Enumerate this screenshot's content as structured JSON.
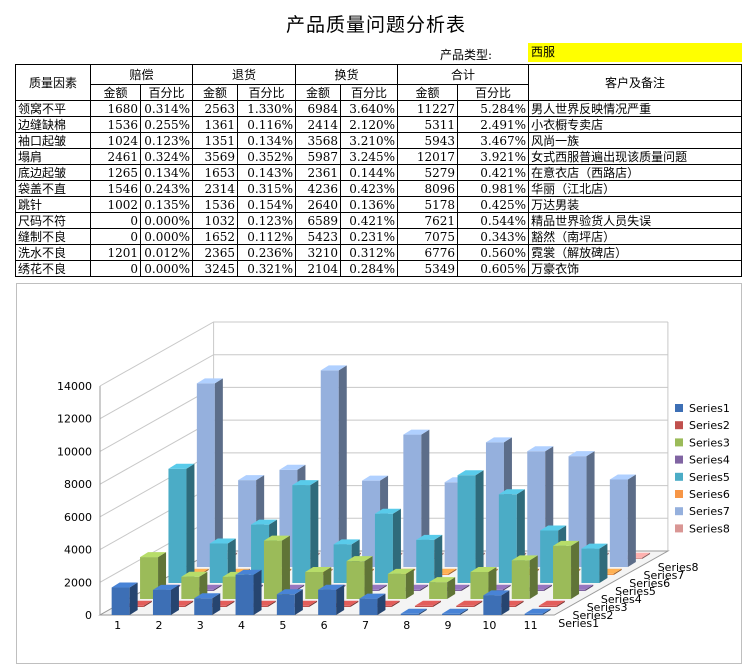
{
  "title": "产品质量问题分析表",
  "product_type_label": "产品类型:",
  "product_type_value": "西服",
  "table": {
    "header": {
      "factor": "质量因素",
      "groups": [
        "赔偿",
        "退货",
        "换货",
        "合计"
      ],
      "amount": "金额",
      "percent": "百分比",
      "notes": "客户及备注"
    },
    "rows": [
      {
        "factor": "领窝不平",
        "c_amt": "1680",
        "c_pct": "0.314%",
        "r_amt": "2563",
        "r_pct": "1.330%",
        "e_amt": "6984",
        "e_pct": "3.640%",
        "t_amt": "11227",
        "t_pct": "5.284%",
        "note": "男人世界反映情况严重"
      },
      {
        "factor": "边缝缺棉",
        "c_amt": "1536",
        "c_pct": "0.255%",
        "r_amt": "1361",
        "r_pct": "0.116%",
        "e_amt": "2414",
        "e_pct": "2.120%",
        "t_amt": "5311",
        "t_pct": "2.491%",
        "note": "小衣橱专卖店"
      },
      {
        "factor": "袖口起皱",
        "c_amt": "1024",
        "c_pct": "0.123%",
        "r_amt": "1351",
        "r_pct": "0.134%",
        "e_amt": "3568",
        "e_pct": "3.210%",
        "t_amt": "5943",
        "t_pct": "3.467%",
        "note": "风尚一族"
      },
      {
        "factor": "塌肩",
        "c_amt": "2461",
        "c_pct": "0.324%",
        "r_amt": "3569",
        "r_pct": "0.352%",
        "e_amt": "5987",
        "e_pct": "3.245%",
        "t_amt": "12017",
        "t_pct": "3.921%",
        "note": "女式西服普遍出现该质量问题"
      },
      {
        "factor": "底边起皱",
        "c_amt": "1265",
        "c_pct": "0.134%",
        "r_amt": "1653",
        "r_pct": "0.143%",
        "e_amt": "2361",
        "e_pct": "0.144%",
        "t_amt": "5279",
        "t_pct": "0.421%",
        "note": "在意衣店（西路店）"
      },
      {
        "factor": "袋盖不直",
        "c_amt": "1546",
        "c_pct": "0.243%",
        "r_amt": "2314",
        "r_pct": "0.315%",
        "e_amt": "4236",
        "e_pct": "0.423%",
        "t_amt": "8096",
        "t_pct": "0.981%",
        "note": "华丽（江北店）"
      },
      {
        "factor": "跳针",
        "c_amt": "1002",
        "c_pct": "0.135%",
        "r_amt": "1536",
        "r_pct": "0.154%",
        "e_amt": "2640",
        "e_pct": "0.136%",
        "t_amt": "5178",
        "t_pct": "0.425%",
        "note": "万达男装"
      },
      {
        "factor": "尺码不符",
        "c_amt": "0",
        "c_pct": "0.000%",
        "r_amt": "1032",
        "r_pct": "0.123%",
        "e_amt": "6589",
        "e_pct": "0.421%",
        "t_amt": "7621",
        "t_pct": "0.544%",
        "note": "精品世界验货人员失误"
      },
      {
        "factor": "缝制不良",
        "c_amt": "0",
        "c_pct": "0.000%",
        "r_amt": "1652",
        "r_pct": "0.112%",
        "e_amt": "5423",
        "e_pct": "0.231%",
        "t_amt": "7075",
        "t_pct": "0.343%",
        "note": "豁然（南坪店）"
      },
      {
        "factor": "洗水不良",
        "c_amt": "1201",
        "c_pct": "0.012%",
        "r_amt": "2365",
        "r_pct": "0.236%",
        "e_amt": "3210",
        "e_pct": "0.312%",
        "t_amt": "6776",
        "t_pct": "0.560%",
        "note": "霓裳（解放碑店）"
      },
      {
        "factor": "绣花不良",
        "c_amt": "0",
        "c_pct": "0.000%",
        "r_amt": "3245",
        "r_pct": "0.321%",
        "e_amt": "2104",
        "e_pct": "0.284%",
        "t_amt": "5349",
        "t_pct": "0.605%",
        "note": "万豪衣饰"
      }
    ]
  },
  "chart_data": {
    "type": "bar",
    "style": "3d-column",
    "categories": [
      "1",
      "2",
      "3",
      "4",
      "5",
      "6",
      "7",
      "8",
      "9",
      "10",
      "11"
    ],
    "series": [
      {
        "name": "Series1",
        "color": "#3d6fb5",
        "values": [
          1680,
          1536,
          1024,
          2461,
          1265,
          1546,
          1002,
          0,
          0,
          1201,
          0
        ]
      },
      {
        "name": "Series2",
        "color": "#c0504d",
        "values": [
          0.314,
          0.255,
          0.123,
          0.324,
          0.134,
          0.243,
          0.135,
          0,
          0,
          0.012,
          0
        ]
      },
      {
        "name": "Series3",
        "color": "#9bbb59",
        "values": [
          2563,
          1361,
          1351,
          3569,
          1653,
          2314,
          1536,
          1032,
          1652,
          2365,
          3245
        ]
      },
      {
        "name": "Series4",
        "color": "#8064a2",
        "values": [
          1.33,
          0.116,
          0.134,
          0.352,
          0.143,
          0.315,
          0.154,
          0.123,
          0.112,
          0.236,
          0.321
        ]
      },
      {
        "name": "Series5",
        "color": "#4bacc6",
        "values": [
          6984,
          2414,
          3568,
          5987,
          2361,
          4236,
          2640,
          6589,
          5423,
          3210,
          2104
        ]
      },
      {
        "name": "Series6",
        "color": "#f79646",
        "values": [
          3.64,
          2.12,
          3.21,
          3.245,
          0.144,
          0.423,
          0.136,
          0.421,
          0.231,
          0.312,
          0.284
        ]
      },
      {
        "name": "Series7",
        "color": "#95b0dd",
        "values": [
          11227,
          5311,
          5943,
          12017,
          5279,
          8096,
          5178,
          7621,
          7075,
          6776,
          5349
        ]
      },
      {
        "name": "Series8",
        "color": "#d99694",
        "values": [
          5.284,
          2.491,
          3.467,
          3.921,
          0.421,
          0.981,
          0.425,
          0.544,
          0.343,
          0.56,
          0.605
        ]
      }
    ],
    "yticks": [
      "0",
      "2000",
      "4000",
      "6000",
      "8000",
      "10000",
      "12000",
      "14000"
    ],
    "ylim": [
      0,
      14000
    ],
    "grid": true,
    "legend_position": "right"
  }
}
